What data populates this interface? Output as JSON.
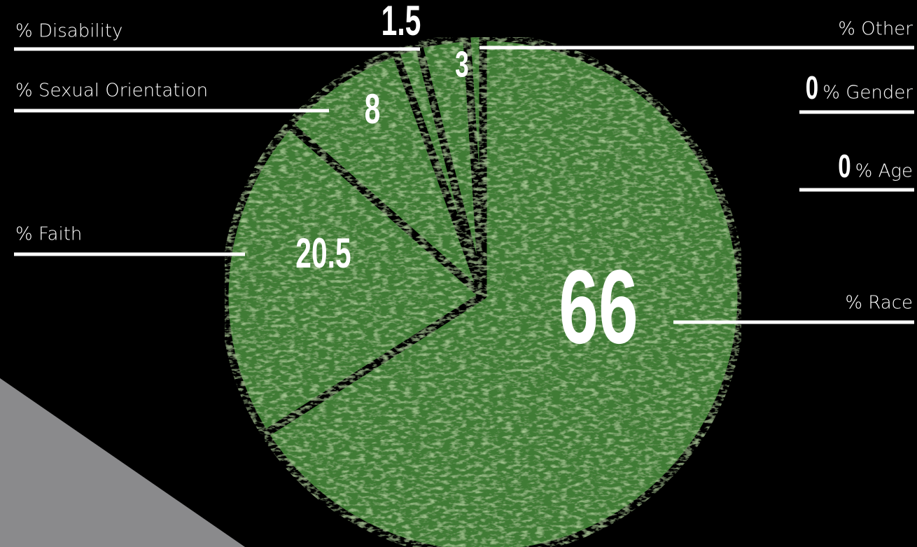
{
  "chart_data": {
    "type": "pie",
    "categories": [
      "% Race",
      "% Faith",
      "% Sexual Orientation",
      "% Disability",
      "% Other",
      "% Gender",
      "% Age"
    ],
    "values": [
      66,
      20.5,
      8,
      1.5,
      3,
      0,
      0
    ],
    "color": "#3f7b34"
  }
}
